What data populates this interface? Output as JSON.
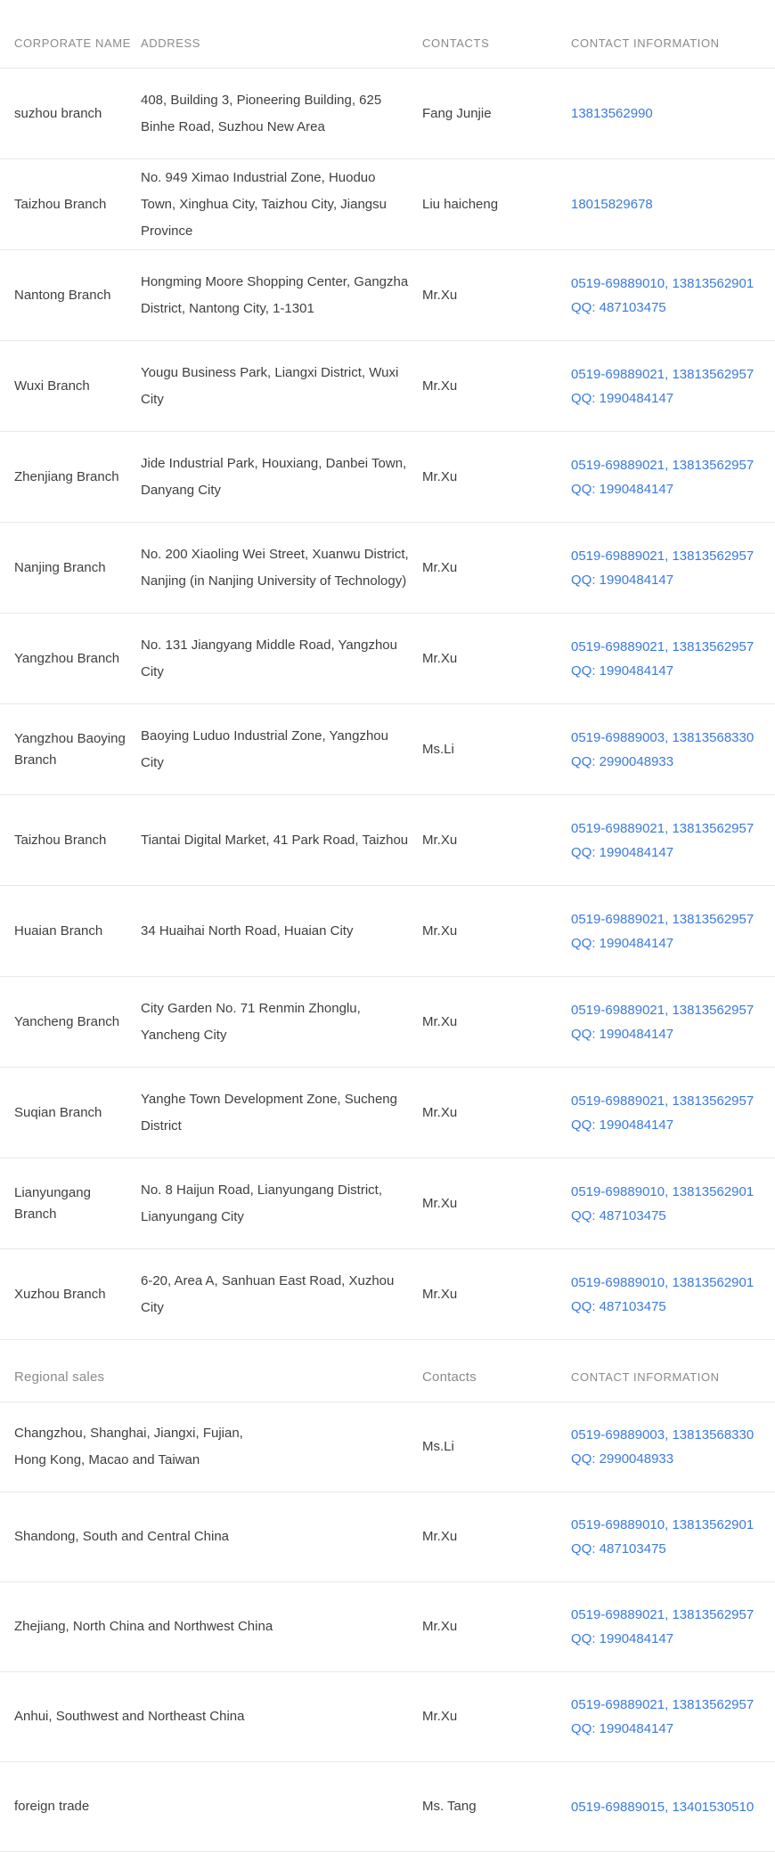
{
  "colors": {
    "link_blue": "#3b7adc",
    "header_gray": "#8a8a8a",
    "body_text": "#3f3f3f",
    "divider": "#e9e9e9",
    "background": "#ffffff"
  },
  "branch_table": {
    "headers": {
      "corporate_name": "CORPORATE NAME",
      "address": "ADDRESS",
      "contacts": "CONTACTS",
      "contact_information": "CONTACT INFORMATION"
    },
    "rows": [
      {
        "name": "suzhou branch",
        "address": "408, Building 3, Pioneering Building, 625 Binhe Road, Suzhou New Area",
        "contact": "Fang Junjie",
        "phones": "13813562990",
        "qq": ""
      },
      {
        "name": "Taizhou Branch",
        "address": "No. 949 Ximao Industrial Zone, Huoduo Town, Xinghua City, Taizhou City, Jiangsu Province",
        "contact": "Liu haicheng",
        "phones": "18015829678",
        "qq": ""
      },
      {
        "name": "Nantong Branch",
        "address": "Hongming Moore Shopping Center, Gangzha District, Nantong City, 1-1301",
        "contact": "Mr.Xu",
        "phones": "0519-69889010、13813562901",
        "qq": "QQ：487103475"
      },
      {
        "name": "Wuxi Branch",
        "address": "Yougu Business Park, Liangxi District, Wuxi City",
        "contact": "Mr.Xu",
        "phones": "0519-69889021、13813562957",
        "qq": "QQ：1990484147"
      },
      {
        "name": "Zhenjiang Branch",
        "address": "Jide Industrial Park, Houxiang, Danbei Town, Danyang City",
        "contact": "Mr.Xu",
        "phones": "0519-69889021、13813562957",
        "qq": "QQ：1990484147"
      },
      {
        "name": "Nanjing Branch",
        "address": "No. 200 Xiaoling Wei Street, Xuanwu District, Nanjing (in Nanjing University of Technology)",
        "contact": "Mr.Xu",
        "phones": "0519-69889021、13813562957",
        "qq": "QQ：1990484147"
      },
      {
        "name": "Yangzhou Branch",
        "address": "No. 131 Jiangyang Middle Road, Yangzhou City",
        "contact": "Mr.Xu",
        "phones": "0519-69889021、13813562957",
        "qq": "QQ：1990484147"
      },
      {
        "name": "Yangzhou Baoying Branch",
        "address": "Baoying Luduo Industrial Zone, Yangzhou City",
        "contact": "Ms.Li",
        "phones": "0519-69889003、13813568330",
        "qq": "QQ：2990048933"
      },
      {
        "name": "Taizhou Branch",
        "address": "Tiantai Digital Market, 41 Park Road, Taizhou",
        "contact": "Mr.Xu",
        "phones": "0519-69889021、13813562957",
        "qq": "QQ：1990484147"
      },
      {
        "name": "Huaian Branch",
        "address": "34 Huaihai North Road, Huaian City",
        "contact": "Mr.Xu",
        "phones": "0519-69889021、13813562957",
        "qq": "QQ：1990484147"
      },
      {
        "name": "Yancheng Branch",
        "address": "City Garden No. 71 Renmin Zhonglu, Yancheng City",
        "contact": "Mr.Xu",
        "phones": "0519-69889021、13813562957",
        "qq": "QQ：1990484147"
      },
      {
        "name": "Suqian Branch",
        "address": "Yanghe Town Development Zone, Sucheng District",
        "contact": "Mr.Xu",
        "phones": "0519-69889021、13813562957",
        "qq": "QQ：1990484147"
      },
      {
        "name": "Lianyungang Branch",
        "address": "No. 8 Haijun Road, Lianyungang District, Lianyungang City",
        "contact": "Mr.Xu",
        "phones": "0519-69889010、13813562901",
        "qq": "QQ：487103475"
      },
      {
        "name": "Xuzhou Branch",
        "address": "6-20, Area A, Sanhuan East Road, Xuzhou City",
        "contact": "Mr.Xu",
        "phones": "0519-69889010、13813562901",
        "qq": "QQ：487103475"
      }
    ]
  },
  "regional_table": {
    "headers": {
      "region": "Regional sales",
      "contacts": "Contacts",
      "contact_information": "CONTACT INFORMATION"
    },
    "rows": [
      {
        "region": "Changzhou, Shanghai, Jiangxi, Fujian,\nHong Kong, Macao and Taiwan",
        "contact": "Ms.Li",
        "phones": "0519-69889003、13813568330",
        "qq": "QQ：2990048933"
      },
      {
        "region": "Shandong, South and Central China",
        "contact": "Mr.Xu",
        "phones": "0519-69889010、13813562901",
        "qq": "QQ：487103475"
      },
      {
        "region": "Zhejiang, North China and Northwest China",
        "contact": "Mr.Xu",
        "phones": "0519-69889021、13813562957",
        "qq": "QQ：1990484147"
      },
      {
        "region": "Anhui, Southwest and Northeast China",
        "contact": "Mr.Xu",
        "phones": "0519-69889021、13813562957",
        "qq": "QQ：1990484147"
      },
      {
        "region": "foreign trade",
        "contact": "Ms. Tang",
        "phones": "0519-69889015、13401530510",
        "qq": ""
      }
    ]
  }
}
